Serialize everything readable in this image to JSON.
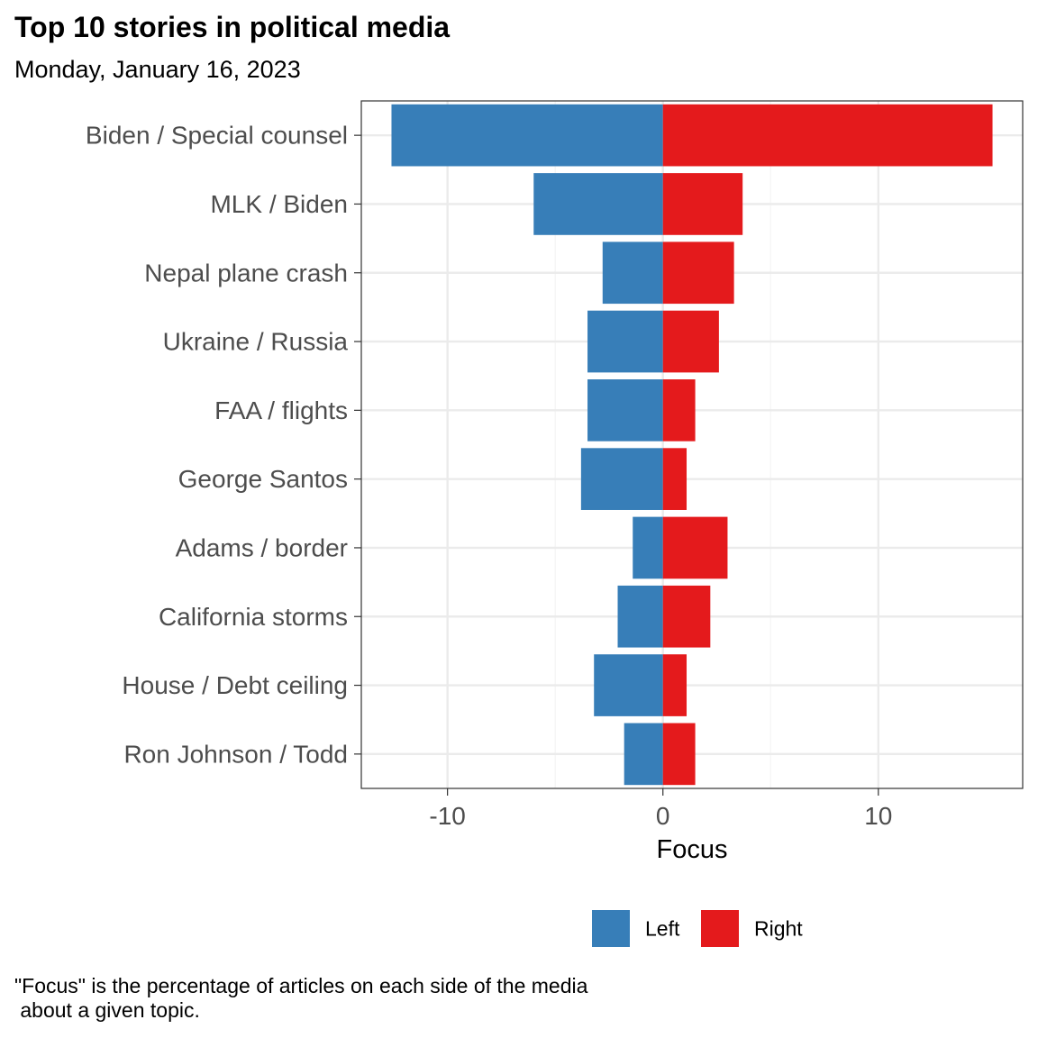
{
  "chart_data": {
    "type": "bar",
    "orientation": "horizontal",
    "stacked": "diverging",
    "title": "Top 10 stories in political media",
    "subtitle": "Monday, January 16, 2023",
    "xlabel": "Focus",
    "ylabel": "",
    "xlim": [
      -14,
      16.7
    ],
    "xticks": [
      -10,
      0,
      10
    ],
    "xtick_labels": [
      "-10",
      "0",
      "10"
    ],
    "grid": true,
    "legend_position": "bottom",
    "categories": [
      "Biden / Special counsel",
      "MLK / Biden",
      "Nepal plane crash",
      "Ukraine / Russia",
      "FAA / flights",
      "George Santos",
      "Adams / border",
      "California storms",
      "House / Debt ceiling",
      "Ron Johnson / Todd"
    ],
    "series": [
      {
        "name": "Left",
        "color": "#377eb8",
        "values": [
          -12.6,
          -6.0,
          -2.8,
          -3.5,
          -3.5,
          -3.8,
          -1.4,
          -2.1,
          -3.2,
          -1.8
        ]
      },
      {
        "name": "Right",
        "color": "#e41a1c",
        "values": [
          15.3,
          3.7,
          3.3,
          2.6,
          1.5,
          1.1,
          3.0,
          2.2,
          1.1,
          1.5
        ]
      }
    ],
    "caption": "\"Focus\" is the percentage of articles on each side of the media\n about a given topic."
  }
}
